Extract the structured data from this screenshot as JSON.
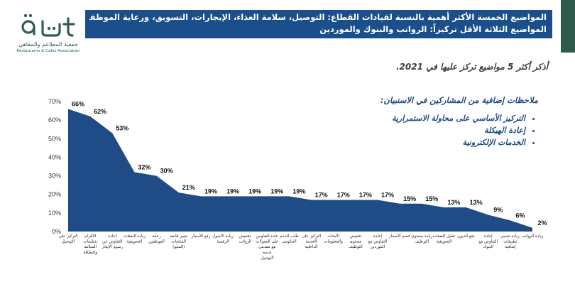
{
  "logo": {
    "name_ar": "جمعية المطاعم والمقاهي",
    "name_en": "Restaurants & Cafes Association"
  },
  "header": {
    "line1": "المواضيع الخمسة الأكثر أهمية بالنسبة لقيادات القطاع: التوصيل، سلامة الغذاء، الإيجارات، التسويق، ورعاية الموظفين.",
    "line2": "المواضيع الثلاثة الأقل تركيزاً: الرواتب والبنوك والموردين"
  },
  "subtitle": "أذكر أكثر 5 مواضيع تركز عليها في 2021.",
  "notes": {
    "title": "ملاحظات إضافية من المشاركين في الاستبيان:",
    "items": [
      "التركيز الأساسي على محاولة الاستمرارية",
      "إعادة الهيكلة",
      "الخدمات الإلكترونية"
    ]
  },
  "colors": {
    "area": "#1f4c86",
    "header_bg": "#1a4f8b",
    "logo": "#2f5f4f"
  },
  "chart_data": {
    "type": "area",
    "categories": [
      [
        "التركيز على",
        "التوصيل"
      ],
      [
        "الالتزام",
        "بتعليمات",
        "السلامة",
        "والنظافة"
      ],
      [
        "إعادة",
        "التفاوض عن",
        "رسوم الإيجار"
      ],
      [
        "زيادة النفقات",
        "التسويقية"
      ],
      [
        "رعاية",
        "الموظفين"
      ],
      [
        "تغيير قائمة",
        "المنتجات",
        "(المنيو)"
      ],
      [
        "رفع الأسعار"
      ],
      [
        "زيادة الأصول",
        "الرقمية"
      ],
      [
        "تخفيض",
        "الرواتب"
      ],
      [
        "عادة التفاوض",
        "على العمولات",
        "مع مقدمي",
        "خدمة",
        "التوصيل"
      ],
      [
        "طلب الدعم",
        "الحكومي"
      ],
      [
        "التركيز على",
        "الخدمة",
        "الداخلية"
      ],
      [
        "الأبحاث",
        "والمعلومات"
      ],
      [
        "تخفيض",
        "مستوى",
        "التوظيف"
      ],
      [
        "إعادة",
        "التفاوض مع",
        "الموردين"
      ],
      [
        "خصم الأسعار"
      ],
      [
        "زيادة مستوى",
        "التوظيف"
      ],
      [
        "تقليل النفقات",
        "التسويقية"
      ],
      [
        "دفع الديون"
      ],
      [
        "إعادة",
        "التفاوض مع",
        "البنوك"
      ],
      [
        "زيادة تقديم",
        "تطبيقات",
        "إضافية"
      ],
      [
        "زيادة الرواتب"
      ]
    ],
    "value_labels": [
      "66%",
      "62%",
      "53%",
      "32%",
      "30%",
      "21%",
      "19%",
      "19%",
      "19%",
      "19%",
      "19%",
      "17%",
      "17%",
      "17%",
      "17%",
      "15%",
      "15%",
      "13%",
      "13%",
      "9%",
      "6%",
      "2%"
    ],
    "values": [
      66,
      62,
      53,
      32,
      30,
      21,
      19,
      19,
      19,
      19,
      19,
      17,
      17,
      17,
      17,
      15,
      15,
      13,
      13,
      9,
      6,
      2
    ],
    "y_ticks": [
      "0%",
      "10%",
      "20%",
      "30%",
      "40%",
      "50%",
      "60%",
      "70%"
    ],
    "ylim": [
      0,
      70
    ],
    "grid": false,
    "legend": "none"
  }
}
